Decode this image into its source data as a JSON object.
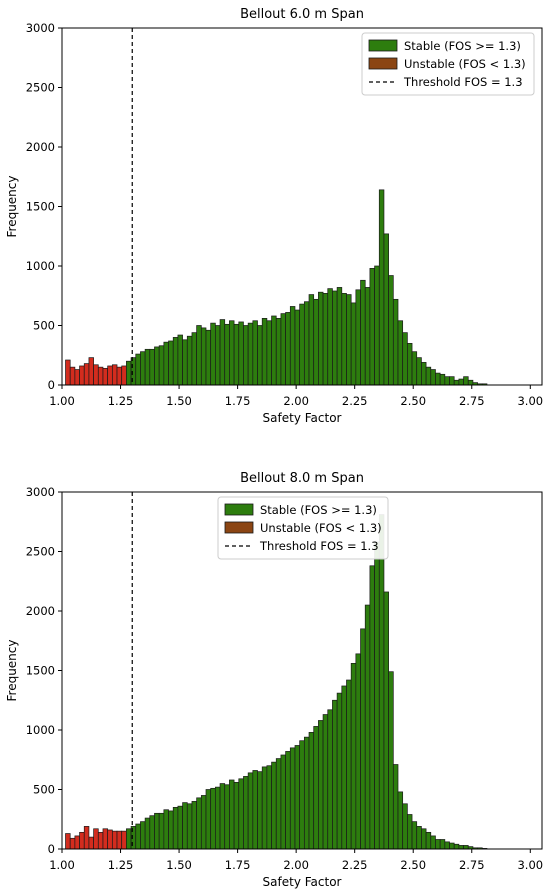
{
  "chart_data": [
    {
      "type": "bar",
      "title": "Bellout 6.0 m Span",
      "xlabel": "Safety Factor",
      "ylabel": "Frequency",
      "xlim": [
        1.0,
        3.05
      ],
      "ylim": [
        0,
        3000
      ],
      "xticks": [
        "1.00",
        "1.25",
        "1.50",
        "1.75",
        "2.00",
        "2.25",
        "2.50",
        "2.75",
        "3.00"
      ],
      "yticks": [
        "0",
        "500",
        "1000",
        "1500",
        "2000",
        "2500",
        "3000"
      ],
      "grid": false,
      "legend_position": "top-right",
      "threshold": 1.3,
      "colors": {
        "stable": "#2d7d0e",
        "unstable": "#d32c1e",
        "legend_unstable": "#8b4513",
        "edge": "#1a1a1a"
      },
      "legend": [
        "Stable (FOS >= 1.3)",
        "Unstable (FOS < 1.3)",
        "Threshold FOS = 1.3"
      ],
      "bin_start": 1.025,
      "bin_width": 0.02,
      "series": [
        {
          "name": "Unstable (FOS < 1.3)",
          "values": [
            210,
            150,
            130,
            160,
            180,
            230,
            170,
            150,
            140,
            160,
            170,
            150,
            160
          ]
        },
        {
          "name": "Stable (FOS >= 1.3)",
          "values": [
            200,
            230,
            260,
            280,
            300,
            300,
            320,
            330,
            360,
            370,
            400,
            420,
            380,
            410,
            440,
            500,
            480,
            460,
            520,
            500,
            550,
            510,
            540,
            510,
            530,
            500,
            520,
            540,
            500,
            560,
            540,
            580,
            560,
            600,
            610,
            660,
            630,
            680,
            700,
            760,
            720,
            780,
            770,
            810,
            790,
            820,
            770,
            760,
            690,
            800,
            880,
            820,
            980,
            1000,
            1640,
            1270,
            920,
            720,
            540,
            440,
            350,
            280,
            230,
            190,
            150,
            130,
            100,
            90,
            70,
            70,
            40,
            50,
            70,
            40,
            20,
            10,
            10
          ]
        }
      ]
    },
    {
      "type": "bar",
      "title": "Bellout 8.0 m Span",
      "xlabel": "Safety Factor",
      "ylabel": "Frequency",
      "xlim": [
        1.0,
        3.05
      ],
      "ylim": [
        0,
        3000
      ],
      "xticks": [
        "1.00",
        "1.25",
        "1.50",
        "1.75",
        "2.00",
        "2.25",
        "2.50",
        "2.75",
        "3.00"
      ],
      "yticks": [
        "0",
        "500",
        "1000",
        "1500",
        "2000",
        "2500",
        "3000"
      ],
      "grid": false,
      "legend_position": "top-center",
      "threshold": 1.3,
      "colors": {
        "stable": "#2d7d0e",
        "unstable": "#d32c1e",
        "legend_unstable": "#8b4513",
        "edge": "#1a1a1a"
      },
      "legend": [
        "Stable (FOS >= 1.3)",
        "Unstable (FOS < 1.3)",
        "Threshold FOS = 1.3"
      ],
      "bin_start": 1.025,
      "bin_width": 0.02,
      "series": [
        {
          "name": "Unstable (FOS < 1.3)",
          "values": [
            130,
            90,
            110,
            140,
            190,
            100,
            170,
            140,
            170,
            160,
            150,
            150,
            150
          ]
        },
        {
          "name": "Stable (FOS >= 1.3)",
          "values": [
            170,
            190,
            210,
            230,
            260,
            280,
            300,
            300,
            330,
            320,
            350,
            360,
            390,
            380,
            400,
            430,
            450,
            500,
            510,
            520,
            550,
            540,
            580,
            560,
            590,
            610,
            640,
            660,
            650,
            690,
            700,
            730,
            760,
            790,
            820,
            850,
            870,
            910,
            940,
            980,
            1030,
            1080,
            1130,
            1170,
            1250,
            1310,
            1370,
            1420,
            1560,
            1640,
            1850,
            2050,
            2380,
            2580,
            2810,
            2160,
            1490,
            710,
            480,
            380,
            290,
            230,
            190,
            170,
            140,
            110,
            80,
            80,
            60,
            50,
            40,
            30,
            30,
            20,
            10,
            10,
            5
          ]
        }
      ]
    }
  ]
}
